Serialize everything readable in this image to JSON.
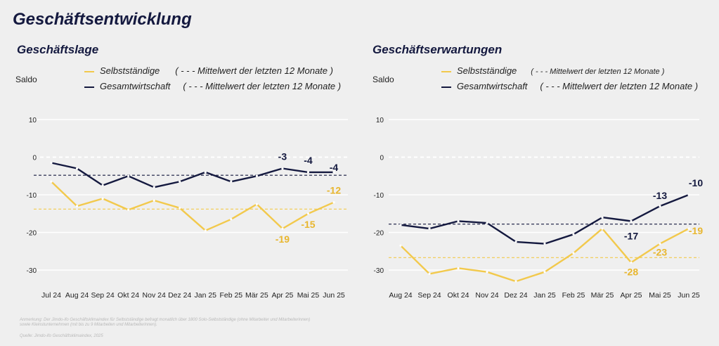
{
  "page": {
    "title": "Geschäftsentwicklung",
    "footnote_1": "Anmerkung: Der Jimdo-ifo Geschäftsklimaindex für Selbstständige befragt monatlich über 1800 Solo-Selbstständige (ohne Mitarbeiter und Mitarbeiterinnen)",
    "footnote_2": "sowie Kleinstunternehmen (mit bis zu 9 Mitarbeiten und Mitarbeiterinnen).",
    "source": "Quelle: Jimdo-ifo Geschäftsklimaindex, 2025"
  },
  "colors": {
    "navy": "#14193f",
    "gold": "#f2c94c",
    "grid": "#ffffff"
  },
  "chart_data": [
    {
      "type": "line",
      "title": "Geschäftslage",
      "ylabel": "Saldo",
      "ylim": [
        -30,
        10
      ],
      "yticks": [
        10,
        0,
        -10,
        -20,
        -30
      ],
      "grid": true,
      "legend_position": "top",
      "categories": [
        "Jul 24",
        "Aug 24",
        "Sep 24",
        "Okt 24",
        "Nov 24",
        "Dez 24",
        "Jan 25",
        "Feb 25",
        "Mär 25",
        "Apr 25",
        "Mai 25",
        "Jun 25"
      ],
      "series": [
        {
          "name": "Selbstständige",
          "color": "#f2c94c",
          "values": [
            -6.5,
            -13,
            -11,
            -14,
            -11.5,
            -13.5,
            -19.5,
            -16.5,
            -12.5,
            -19,
            -15,
            -12
          ]
        },
        {
          "name": "Gesamtwirtschaft",
          "color": "#14193f",
          "values": [
            -1.5,
            -3,
            -7.5,
            -5,
            -8,
            -6.5,
            -4,
            -6.5,
            -5,
            -3,
            -4,
            -4
          ]
        }
      ],
      "reference_lines": [
        {
          "label": "( - - - Mittelwert der letzten 12 Monate )",
          "series": "Selbstständige",
          "value": -13.8
        },
        {
          "label": "( - - - Mittelwert der letzten 12 Monate )",
          "series": "Gesamtwirtschaft",
          "value": -4.8
        }
      ],
      "data_labels": [
        {
          "series": "Gesamtwirtschaft",
          "category": "Apr 25",
          "text": "-3"
        },
        {
          "series": "Gesamtwirtschaft",
          "category": "Mai 25",
          "text": "-4"
        },
        {
          "series": "Gesamtwirtschaft",
          "category": "Jun 25",
          "text": "-4"
        },
        {
          "series": "Selbstständige",
          "category": "Apr 25",
          "text": "-19"
        },
        {
          "series": "Selbstständige",
          "category": "Mai 25",
          "text": "-15"
        },
        {
          "series": "Selbstständige",
          "category": "Jun 25",
          "text": "-12"
        }
      ]
    },
    {
      "type": "line",
      "title": "Geschäftserwartungen",
      "ylabel": "Saldo",
      "ylim": [
        -30,
        10
      ],
      "yticks": [
        10,
        0,
        -10,
        -20,
        -30
      ],
      "grid": true,
      "legend_position": "top",
      "categories": [
        "Aug 24",
        "Sep 24",
        "Okt 24",
        "Nov 24",
        "Dez 24",
        "Jan 25",
        "Feb 25",
        "Mär 25",
        "Apr 25",
        "Mai 25",
        "Jun 25"
      ],
      "series": [
        {
          "name": "Selbstständige",
          "color": "#f2c94c",
          "values": [
            -23.5,
            -31,
            -29.5,
            -30.5,
            -33,
            -30.5,
            -25.5,
            -19,
            -28,
            -23,
            -19
          ]
        },
        {
          "name": "Gesamtwirtschaft",
          "color": "#14193f",
          "values": [
            -18,
            -19,
            -17,
            -17.5,
            -22.5,
            -23,
            -20.5,
            -16,
            -17,
            -13,
            -10
          ]
        }
      ],
      "reference_lines": [
        {
          "label": "( - - - Mittelwert der letzten 12 Monate )",
          "series": "Selbstständige",
          "value": -26.7
        },
        {
          "label": "( - - - Mittelwert der letzten 12 Monate )",
          "series": "Gesamtwirtschaft",
          "value": -17.8
        }
      ],
      "data_labels": [
        {
          "series": "Gesamtwirtschaft",
          "category": "Apr 25",
          "text": "-17"
        },
        {
          "series": "Gesamtwirtschaft",
          "category": "Mai 25",
          "text": "-13"
        },
        {
          "series": "Gesamtwirtschaft",
          "category": "Jun 25",
          "text": "-10"
        },
        {
          "series": "Selbstständige",
          "category": "Apr 25",
          "text": "-28"
        },
        {
          "series": "Selbstständige",
          "category": "Mai 25",
          "text": "-23"
        },
        {
          "series": "Selbstständige",
          "category": "Jun 25",
          "text": "-19"
        }
      ]
    }
  ]
}
